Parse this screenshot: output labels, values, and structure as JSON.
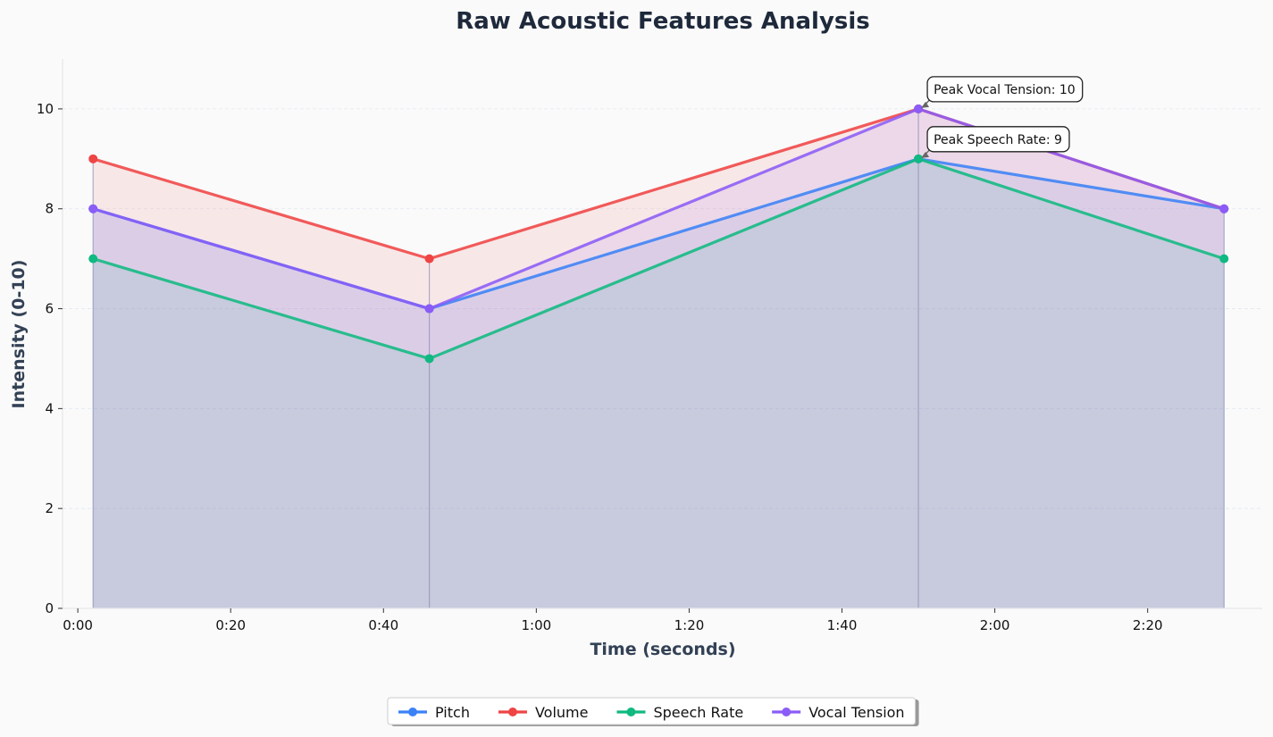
{
  "chart_data": {
    "type": "area",
    "title": "Raw Acoustic Features Analysis",
    "xlabel": "Time (seconds)",
    "ylabel": "Intensity (0-10)",
    "x": [
      2,
      46,
      110,
      150
    ],
    "xlim": [
      -2,
      155
    ],
    "ylim": [
      0,
      11
    ],
    "xticks": [
      0,
      20,
      40,
      60,
      80,
      100,
      120,
      140
    ],
    "xtick_labels": [
      "0:00",
      "0:20",
      "0:40",
      "1:00",
      "1:20",
      "1:40",
      "2:00",
      "2:20"
    ],
    "yticks": [
      0,
      2,
      4,
      6,
      8,
      10
    ],
    "ytick_labels": [
      "0",
      "2",
      "4",
      "6",
      "8",
      "10"
    ],
    "grid": "horizontal dashed",
    "legend_position": "bottom-center",
    "series": [
      {
        "name": "Pitch",
        "values": [
          8,
          6,
          9,
          8
        ],
        "color": "#3b82f6"
      },
      {
        "name": "Volume",
        "values": [
          9,
          7,
          10,
          8
        ],
        "color": "#ef4444"
      },
      {
        "name": "Speech Rate",
        "values": [
          7,
          5,
          9,
          7
        ],
        "color": "#10b981"
      },
      {
        "name": "Vocal Tension",
        "values": [
          8,
          6,
          10,
          8
        ],
        "color": "#8b5cf6"
      }
    ],
    "annotations": [
      {
        "text": "Peak Vocal Tension: 10",
        "x": 110,
        "y": 10
      },
      {
        "text": "Peak Speech Rate: 9",
        "x": 110,
        "y": 9
      }
    ]
  }
}
